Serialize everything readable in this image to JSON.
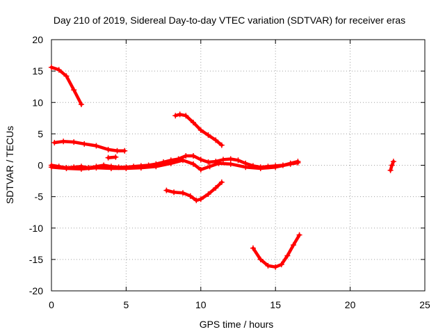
{
  "chart_data": {
    "type": "scatter",
    "title": "Day 210 of 2019, Sidereal Day-to-day VTEC variation (SDTVAR) for receiver eras",
    "xlabel": "GPS time / hours",
    "ylabel": "SDTVAR / TECUs",
    "xlim": [
      0,
      25
    ],
    "ylim": [
      -20,
      20
    ],
    "xticks": [
      "0",
      "5",
      "10",
      "15",
      "20",
      "25"
    ],
    "yticks": [
      "20",
      "15",
      "10",
      "5",
      "0",
      "-5",
      "-10",
      "-15",
      "-20"
    ],
    "grid": true,
    "color": "#ff0000",
    "series": [
      {
        "points": [
          [
            0.0,
            15.6
          ],
          [
            0.5,
            15.2
          ],
          [
            1.0,
            14.2
          ],
          [
            1.5,
            12.0
          ],
          [
            2.0,
            9.7
          ]
        ]
      },
      {
        "points": [
          [
            0.2,
            3.6
          ],
          [
            0.8,
            3.8
          ],
          [
            1.5,
            3.7
          ],
          [
            2.2,
            3.4
          ],
          [
            3.0,
            3.1
          ],
          [
            3.8,
            2.5
          ],
          [
            4.4,
            2.3
          ],
          [
            4.9,
            2.3
          ]
        ]
      },
      {
        "points": [
          [
            0.0,
            0.0
          ],
          [
            0.5,
            -0.2
          ],
          [
            1.0,
            -0.4
          ],
          [
            1.5,
            -0.3
          ],
          [
            2.0,
            -0.2
          ],
          [
            2.5,
            -0.4
          ],
          [
            3.0,
            -0.2
          ],
          [
            3.5,
            0.0
          ],
          [
            4.0,
            -0.2
          ],
          [
            4.5,
            -0.3
          ],
          [
            5.0,
            -0.3
          ],
          [
            5.5,
            -0.2
          ],
          [
            6.0,
            -0.1
          ],
          [
            6.5,
            0.0
          ],
          [
            7.0,
            0.2
          ],
          [
            7.5,
            0.5
          ],
          [
            8.0,
            0.8
          ],
          [
            8.5,
            1.0
          ],
          [
            9.0,
            1.5
          ],
          [
            9.5,
            1.5
          ],
          [
            10.0,
            0.9
          ],
          [
            10.5,
            0.5
          ],
          [
            11.0,
            0.6
          ],
          [
            11.5,
            0.9
          ],
          [
            12.0,
            1.0
          ],
          [
            12.5,
            0.8
          ],
          [
            13.0,
            0.3
          ],
          [
            13.5,
            -0.1
          ],
          [
            14.0,
            -0.3
          ],
          [
            14.5,
            -0.2
          ],
          [
            15.0,
            -0.1
          ],
          [
            15.5,
            0.0
          ],
          [
            16.0,
            0.3
          ],
          [
            16.5,
            0.6
          ]
        ]
      },
      {
        "points": [
          [
            0.0,
            -0.3
          ],
          [
            1.0,
            -0.5
          ],
          [
            2.0,
            -0.6
          ],
          [
            3.0,
            -0.4
          ],
          [
            4.0,
            -0.5
          ],
          [
            5.0,
            -0.5
          ],
          [
            6.0,
            -0.4
          ],
          [
            7.0,
            -0.2
          ],
          [
            8.0,
            0.3
          ],
          [
            8.8,
            0.8
          ],
          [
            9.5,
            0.2
          ],
          [
            10.0,
            -0.7
          ],
          [
            10.6,
            -0.2
          ],
          [
            11.2,
            0.3
          ],
          [
            12.0,
            0.2
          ],
          [
            13.0,
            -0.3
          ],
          [
            14.0,
            -0.5
          ],
          [
            15.0,
            -0.3
          ],
          [
            16.0,
            0.2
          ],
          [
            16.5,
            0.4
          ]
        ]
      },
      {
        "points": [
          [
            3.8,
            1.2
          ],
          [
            4.3,
            1.3
          ]
        ]
      },
      {
        "points": [
          [
            8.3,
            7.9
          ],
          [
            8.6,
            8.1
          ],
          [
            9.0,
            7.9
          ],
          [
            9.5,
            6.8
          ],
          [
            10.0,
            5.6
          ],
          [
            10.5,
            4.8
          ],
          [
            11.0,
            4.0
          ],
          [
            11.4,
            3.2
          ]
        ]
      },
      {
        "points": [
          [
            7.7,
            -4.0
          ],
          [
            8.2,
            -4.3
          ],
          [
            8.8,
            -4.4
          ],
          [
            9.3,
            -4.9
          ],
          [
            9.7,
            -5.6
          ],
          [
            10.0,
            -5.4
          ],
          [
            10.5,
            -4.6
          ],
          [
            11.0,
            -3.6
          ],
          [
            11.4,
            -2.7
          ]
        ]
      },
      {
        "points": [
          [
            13.5,
            -13.2
          ],
          [
            14.0,
            -15.0
          ],
          [
            14.5,
            -16.0
          ],
          [
            15.0,
            -16.2
          ],
          [
            15.4,
            -15.8
          ],
          [
            15.8,
            -14.4
          ],
          [
            16.2,
            -12.7
          ],
          [
            16.6,
            -11.1
          ]
        ]
      },
      {
        "points": [
          [
            22.7,
            -0.8
          ],
          [
            22.8,
            0.0
          ],
          [
            22.9,
            0.6
          ]
        ]
      }
    ]
  }
}
